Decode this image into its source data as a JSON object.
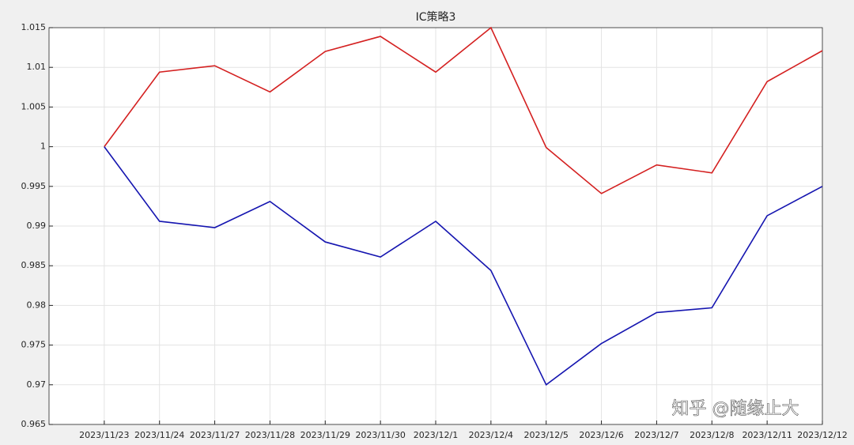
{
  "chart_data": {
    "type": "line",
    "title": "IC策略3",
    "categories": [
      "2023/11/23",
      "2023/11/24",
      "2023/11/27",
      "2023/11/28",
      "2023/11/29",
      "2023/11/30",
      "2023/12/1",
      "2023/12/4",
      "2023/12/5",
      "2023/12/6",
      "2023/12/7",
      "2023/12/8",
      "2023/12/11",
      "2023/12/12"
    ],
    "series": [
      {
        "color": "#d42020",
        "values": [
          1.0,
          1.0094,
          1.0102,
          1.0069,
          1.012,
          1.0139,
          1.0094,
          1.015,
          0.9999,
          0.9941,
          0.9977,
          0.9967,
          1.0082,
          1.0121
        ]
      },
      {
        "color": "#1515b0",
        "values": [
          1.0,
          0.9906,
          0.9898,
          0.9931,
          0.988,
          0.9861,
          0.9906,
          0.9844,
          0.97,
          0.9752,
          0.9791,
          0.9797,
          0.9913,
          0.995
        ]
      }
    ],
    "ylim": [
      0.965,
      1.015
    ],
    "yticks": [
      0.965,
      0.97,
      0.975,
      0.98,
      0.985,
      0.99,
      0.995,
      1,
      1.005,
      1.01,
      1.015
    ],
    "grid": true,
    "watermark": "知乎 @随缘止大"
  }
}
